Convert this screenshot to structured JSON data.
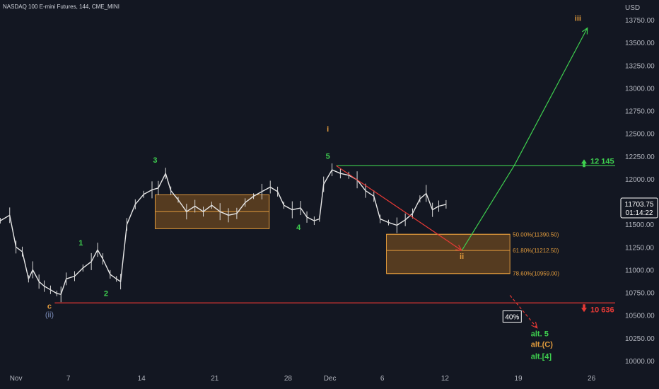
{
  "chart_data": {
    "type": "candlestick",
    "title": "NASDAQ 100 E-mini Futures, 144, CME_MINI",
    "currency": "USD",
    "ylim": [
      9925,
      13925
    ],
    "y_ticks": [
      10000,
      10250,
      10500,
      10750,
      11000,
      11250,
      11500,
      11750,
      12000,
      12250,
      12500,
      12750,
      13000,
      13250,
      13500,
      13750
    ],
    "y_tick_labels": [
      "10000.00",
      "10250.00",
      "10500.00",
      "10750.00",
      "11000.00",
      "11250.00",
      "11500.00",
      "11750.00",
      "12000.00",
      "12250.00",
      "12500.00",
      "12750.00",
      "13000.00",
      "13250.00",
      "13500.00",
      "13750.00"
    ],
    "x_ticks": [
      {
        "label": "Nov",
        "day": 2
      },
      {
        "label": "7",
        "day": 7
      },
      {
        "label": "14",
        "day": 14
      },
      {
        "label": "21",
        "day": 21
      },
      {
        "label": "28",
        "day": 28
      },
      {
        "label": "Dec",
        "day": 32
      },
      {
        "label": "6",
        "day": 37
      },
      {
        "label": "12",
        "day": 43
      },
      {
        "label": "19",
        "day": 50
      },
      {
        "label": "26",
        "day": 57
      }
    ],
    "price_path": [
      [
        0.5,
        11540
      ],
      [
        1.4,
        11600
      ],
      [
        2.0,
        11250
      ],
      [
        2.6,
        11200
      ],
      [
        3.2,
        10900
      ],
      [
        3.6,
        11000
      ],
      [
        4.2,
        10870
      ],
      [
        4.7,
        10820
      ],
      [
        5.3,
        10780
      ],
      [
        5.9,
        10740
      ],
      [
        6.3,
        10730
      ],
      [
        6.8,
        10900
      ],
      [
        7.6,
        10930
      ],
      [
        8.4,
        11020
      ],
      [
        9.2,
        11090
      ],
      [
        9.8,
        11220
      ],
      [
        10.3,
        11120
      ],
      [
        11.0,
        10950
      ],
      [
        11.6,
        10900
      ],
      [
        12.0,
        10870
      ],
      [
        12.6,
        11500
      ],
      [
        13.4,
        11720
      ],
      [
        14.2,
        11830
      ],
      [
        15.0,
        11880
      ],
      [
        15.6,
        11900
      ],
      [
        16.3,
        12060
      ],
      [
        16.8,
        11870
      ],
      [
        17.5,
        11770
      ],
      [
        18.3,
        11640
      ],
      [
        19.1,
        11700
      ],
      [
        19.9,
        11640
      ],
      [
        20.7,
        11710
      ],
      [
        21.5,
        11640
      ],
      [
        22.3,
        11600
      ],
      [
        23.1,
        11620
      ],
      [
        23.9,
        11740
      ],
      [
        24.7,
        11810
      ],
      [
        25.5,
        11860
      ],
      [
        26.3,
        11910
      ],
      [
        27.0,
        11860
      ],
      [
        27.6,
        11710
      ],
      [
        28.4,
        11660
      ],
      [
        29.2,
        11680
      ],
      [
        29.8,
        11580
      ],
      [
        30.5,
        11540
      ],
      [
        31.0,
        11560
      ],
      [
        31.4,
        11940
      ],
      [
        32.2,
        12100
      ],
      [
        33.0,
        12060
      ],
      [
        33.8,
        12040
      ],
      [
        34.6,
        11990
      ],
      [
        35.4,
        11870
      ],
      [
        36.2,
        11810
      ],
      [
        36.8,
        11560
      ],
      [
        37.6,
        11520
      ],
      [
        38.4,
        11490
      ],
      [
        39.2,
        11550
      ],
      [
        39.9,
        11620
      ],
      [
        40.6,
        11780
      ],
      [
        41.2,
        11840
      ],
      [
        41.8,
        11660
      ],
      [
        42.4,
        11700
      ],
      [
        43.1,
        11720
      ]
    ],
    "boxes": [
      {
        "x0": 15.3,
        "x1": 26.2,
        "y0": 11452,
        "y1": 11825,
        "mid": 11640
      },
      {
        "x0": 37.4,
        "x1": 49.2,
        "y0": 10959,
        "y1": 11390.5
      }
    ],
    "fib_levels": [
      {
        "label": "50.00%(11390.50)",
        "value": 11390.5
      },
      {
        "label": "61.80%(11212.50)",
        "value": 11212.5
      },
      {
        "label": "78.60%(10959.00)",
        "value": 10959
      }
    ],
    "levels": [
      {
        "label": "12 145",
        "value": 12145,
        "color": "#3ecf4f",
        "x0": 32.6,
        "direction": "up"
      },
      {
        "label": "10 636",
        "value": 10636,
        "color": "#e53935",
        "x0": 5.7,
        "direction": "down"
      }
    ],
    "projection_lines": [
      {
        "color": "#e53935",
        "dashed": false,
        "points": [
          [
            32.6,
            12145
          ],
          [
            44.6,
            11212
          ]
        ]
      },
      {
        "color": "#3ecf4f",
        "dashed": false,
        "points": [
          [
            44.6,
            11212
          ],
          [
            49.6,
            12145
          ],
          [
            56.6,
            13660
          ]
        ]
      },
      {
        "color": "#e53935",
        "dashed": true,
        "points": [
          [
            49.2,
            10720
          ],
          [
            51.8,
            10360
          ]
        ]
      }
    ],
    "wave_labels": [
      {
        "text": "(ii)",
        "x": 5.2,
        "y": 10480,
        "color": "blue"
      },
      {
        "text": "c",
        "x": 5.2,
        "y": 10570,
        "color": "orange"
      },
      {
        "text": "1",
        "x": 8.2,
        "y": 11270,
        "color": "green"
      },
      {
        "text": "2",
        "x": 10.6,
        "y": 10710,
        "color": "green"
      },
      {
        "text": "3",
        "x": 15.3,
        "y": 12180,
        "color": "green"
      },
      {
        "text": "4",
        "x": 29.0,
        "y": 11440,
        "color": "green"
      },
      {
        "text": "5",
        "x": 31.8,
        "y": 12220,
        "color": "green"
      },
      {
        "text": "i",
        "x": 31.8,
        "y": 12520,
        "color": "orange"
      },
      {
        "text": "ii",
        "x": 44.6,
        "y": 11120,
        "color": "orange"
      },
      {
        "text": "iii",
        "x": 55.7,
        "y": 13740,
        "color": "orange"
      }
    ],
    "alt_labels": [
      {
        "text": "alt. 5",
        "x": 51.2,
        "y": 10270,
        "color": "#3ecf4f"
      },
      {
        "text": "alt.(C)",
        "x": 51.2,
        "y": 10150,
        "color": "#e09a3c"
      },
      {
        "text": "alt.[4]",
        "x": 51.2,
        "y": 10020,
        "color": "#3ecf4f"
      }
    ],
    "probability_box": {
      "text": "40%",
      "x": 48.6,
      "y": 10455
    },
    "last_price": {
      "price": "11703.75",
      "time": "01:14:22",
      "value": 11703.75
    }
  }
}
